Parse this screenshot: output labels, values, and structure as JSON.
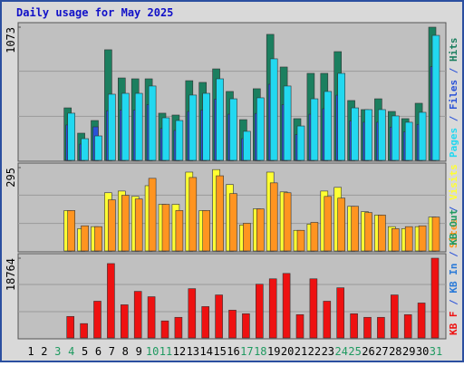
{
  "title": "Daily usage for May 2025",
  "legend_separator": " / ",
  "weekend_color": "#1f9a60",
  "weekend_categories": [
    "3",
    "4",
    "10",
    "11",
    "17",
    "18",
    "24",
    "25",
    "31"
  ],
  "chart_data": [
    {
      "type": "bar",
      "ylim": [
        0,
        1073
      ],
      "yticks": [
        1073
      ],
      "series": [
        {
          "name": "Hits",
          "color": "#1b7f5f",
          "values": [
            null,
            null,
            null,
            423,
            219,
            321,
            891,
            664,
            657,
            657,
            380,
            365,
            642,
            628,
            737,
            555,
            328,
            577,
            1015,
            752,
            336,
            701,
            701,
            876,
            482,
            409,
            496,
            394,
            336,
            460,
            1073
          ]
        },
        {
          "name": "Files",
          "color": "#2a52d8",
          "values": [
            null,
            null,
            null,
            285,
            131,
            270,
            400,
            405,
            405,
            449,
            257,
            241,
            394,
            405,
            493,
            372,
            175,
            378,
            613,
            449,
            208,
            372,
            416,
            525,
            317,
            307,
            307,
            268,
            230,
            290,
            755
          ]
        },
        {
          "name": "Pages",
          "color": "#22d8f0",
          "values": [
            null,
            null,
            null,
            380,
            175,
            197,
            533,
            540,
            540,
            599,
            343,
            321,
            526,
            540,
            657,
            496,
            234,
            504,
            818,
            599,
            277,
            496,
            555,
            701,
            423,
            409,
            409,
            358,
            307,
            387,
            1007
          ]
        }
      ],
      "legend_order": [
        "Pages",
        "Files",
        "Hits"
      ]
    },
    {
      "type": "bar",
      "ylim": [
        0,
        295
      ],
      "yticks": [
        295
      ],
      "series": [
        {
          "name": "Visits",
          "color": "#ffff33",
          "values": [
            null,
            null,
            null,
            143,
            79,
            86,
            206,
            212,
            193,
            231,
            165,
            165,
            279,
            143,
            288,
            235,
            92,
            149,
            279,
            209,
            73,
            95,
            212,
            225,
            158,
            139,
            127,
            86,
            79,
            86,
            120
          ]
        },
        {
          "name": "Sites",
          "color": "#ff9420",
          "values": [
            null,
            null,
            null,
            143,
            89,
            86,
            181,
            197,
            184,
            257,
            165,
            143,
            260,
            143,
            266,
            203,
            98,
            149,
            241,
            206,
            73,
            101,
            193,
            187,
            158,
            136,
            127,
            79,
            86,
            89,
            120
          ]
        }
      ],
      "legend_order": [
        "Sites",
        "Visits"
      ]
    },
    {
      "type": "bar",
      "ylim": [
        0,
        18764
      ],
      "yticks": [
        18764
      ],
      "categories": [
        "1",
        "2",
        "3",
        "4",
        "5",
        "6",
        "7",
        "8",
        "9",
        "10",
        "11",
        "12",
        "13",
        "14",
        "15",
        "16",
        "17",
        "18",
        "19",
        "20",
        "21",
        "22",
        "23",
        "24",
        "25",
        "26",
        "27",
        "28",
        "29",
        "30",
        "31"
      ],
      "series": [
        {
          "name": "KB F",
          "color": "#ee1111",
          "values": [
            null,
            null,
            null,
            5059,
            3373,
            8643,
            17497,
            7800,
            10962,
            9697,
            4005,
            4848,
            11594,
            7378,
            10118,
            6535,
            5692,
            12648,
            13913,
            15178,
            5481,
            13913,
            8643,
            11805,
            5692,
            4848,
            4848,
            10118,
            5481,
            8221,
            18764
          ]
        }
      ],
      "legend": [
        {
          "name": "KB In",
          "color": "#2a7ad8"
        },
        {
          "name": "KB Out",
          "color": "#1f9a60"
        }
      ]
    }
  ]
}
